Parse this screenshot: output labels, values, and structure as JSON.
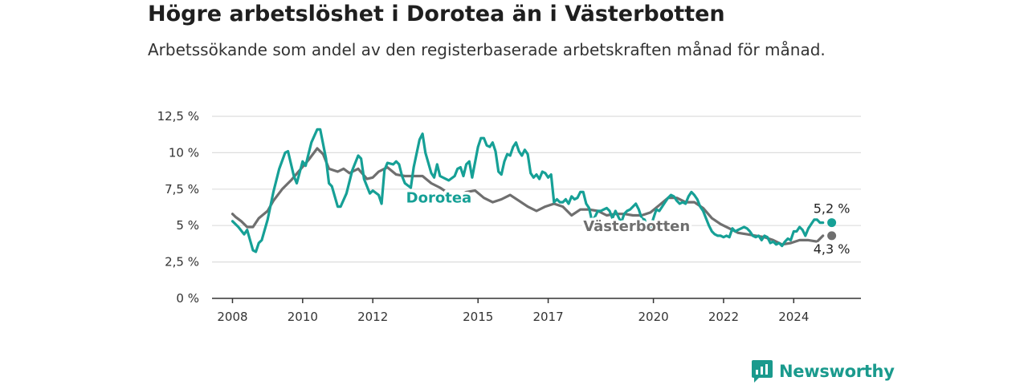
{
  "title": "Högre arbetslöshet i Dorotea än i Västerbotten",
  "subtitle": "Arbetssökande som andel av den registerbaserade arbetskraften månad för månad.",
  "brand": {
    "name": "Newsworthy",
    "icon": "newsworthy-logo-icon"
  },
  "colors": {
    "dorotea": "#16a096",
    "vasterbotten": "#6f6f6f",
    "grid": "#dddddd",
    "axis": "#333333"
  },
  "chart_data": {
    "type": "line",
    "ylim": [
      0,
      12.5
    ],
    "y_ticks": [
      {
        "value": 0,
        "label": "0 %"
      },
      {
        "value": 2.5,
        "label": "2,5 %"
      },
      {
        "value": 5,
        "label": "5 %"
      },
      {
        "value": 7.5,
        "label": "7,5 %"
      },
      {
        "value": 10,
        "label": "10 %"
      },
      {
        "value": 12.5,
        "label": "12,5 %"
      }
    ],
    "x_ticks": [
      "2008",
      "2010",
      "2012",
      "2015",
      "2017",
      "2020",
      "2022",
      "2024"
    ],
    "xlim": [
      "2007-06",
      "2025-12"
    ],
    "grid": true,
    "series": [
      {
        "name": "Dorotea",
        "end_label": "5,2 %",
        "points": [
          [
            "2008-01",
            5.3
          ],
          [
            "2008-03",
            4.9
          ],
          [
            "2008-05",
            4.4
          ],
          [
            "2008-06",
            4.7
          ],
          [
            "2008-08",
            3.3
          ],
          [
            "2008-09",
            3.2
          ],
          [
            "2008-10",
            3.8
          ],
          [
            "2008-11",
            4.0
          ],
          [
            "2009-01",
            5.4
          ],
          [
            "2009-03",
            7.3
          ],
          [
            "2009-05",
            8.9
          ],
          [
            "2009-07",
            10.0
          ],
          [
            "2009-08",
            10.1
          ],
          [
            "2009-10",
            8.4
          ],
          [
            "2009-11",
            7.9
          ],
          [
            "2010-01",
            9.4
          ],
          [
            "2010-02",
            9.1
          ],
          [
            "2010-04",
            10.7
          ],
          [
            "2010-06",
            11.6
          ],
          [
            "2010-07",
            11.6
          ],
          [
            "2010-09",
            9.6
          ],
          [
            "2010-10",
            7.9
          ],
          [
            "2010-11",
            7.7
          ],
          [
            "2011-01",
            6.3
          ],
          [
            "2011-02",
            6.3
          ],
          [
            "2011-04",
            7.2
          ],
          [
            "2011-06",
            8.8
          ],
          [
            "2011-08",
            9.8
          ],
          [
            "2011-09",
            9.6
          ],
          [
            "2011-10",
            8.2
          ],
          [
            "2011-12",
            7.2
          ],
          [
            "2012-01",
            7.4
          ],
          [
            "2012-03",
            7.1
          ],
          [
            "2012-04",
            6.5
          ],
          [
            "2012-05",
            8.8
          ],
          [
            "2012-06",
            9.3
          ],
          [
            "2012-08",
            9.2
          ],
          [
            "2012-09",
            9.4
          ],
          [
            "2012-10",
            9.2
          ],
          [
            "2012-11",
            8.4
          ],
          [
            "2012-12",
            7.9
          ],
          [
            "2013-02",
            7.6
          ],
          [
            "2013-03",
            9.0
          ],
          [
            "2013-05",
            10.9
          ],
          [
            "2013-06",
            11.3
          ],
          [
            "2013-07",
            10.0
          ],
          [
            "2013-09",
            8.6
          ],
          [
            "2013-10",
            8.3
          ],
          [
            "2013-11",
            9.2
          ],
          [
            "2013-12",
            8.4
          ],
          [
            "2014-03",
            8.1
          ],
          [
            "2014-05",
            8.4
          ],
          [
            "2014-06",
            8.9
          ],
          [
            "2014-07",
            9.0
          ],
          [
            "2014-08",
            8.4
          ],
          [
            "2014-09",
            9.2
          ],
          [
            "2014-10",
            9.4
          ],
          [
            "2014-11",
            8.3
          ],
          [
            "2015-01",
            10.4
          ],
          [
            "2015-02",
            11.0
          ],
          [
            "2015-03",
            11.0
          ],
          [
            "2015-04",
            10.5
          ],
          [
            "2015-05",
            10.4
          ],
          [
            "2015-06",
            10.7
          ],
          [
            "2015-07",
            10.1
          ],
          [
            "2015-08",
            8.7
          ],
          [
            "2015-09",
            8.5
          ],
          [
            "2015-10",
            9.4
          ],
          [
            "2015-11",
            9.9
          ],
          [
            "2015-12",
            9.8
          ],
          [
            "2016-01",
            10.4
          ],
          [
            "2016-02",
            10.7
          ],
          [
            "2016-03",
            10.1
          ],
          [
            "2016-04",
            9.8
          ],
          [
            "2016-05",
            10.2
          ],
          [
            "2016-06",
            9.9
          ],
          [
            "2016-07",
            8.6
          ],
          [
            "2016-08",
            8.3
          ],
          [
            "2016-09",
            8.5
          ],
          [
            "2016-10",
            8.2
          ],
          [
            "2016-11",
            8.7
          ],
          [
            "2016-12",
            8.6
          ],
          [
            "2017-01",
            8.3
          ],
          [
            "2017-02",
            8.5
          ],
          [
            "2017-03",
            6.6
          ],
          [
            "2017-04",
            6.8
          ],
          [
            "2017-05",
            6.6
          ],
          [
            "2017-06",
            6.6
          ],
          [
            "2017-07",
            6.8
          ],
          [
            "2017-08",
            6.5
          ],
          [
            "2017-09",
            7.0
          ],
          [
            "2017-10",
            6.8
          ],
          [
            "2017-11",
            6.9
          ],
          [
            "2017-12",
            7.3
          ],
          [
            "2018-01",
            7.3
          ],
          [
            "2018-02",
            6.5
          ],
          [
            "2018-03",
            6.2
          ],
          [
            "2018-04",
            5.3
          ],
          [
            "2018-05",
            5.6
          ],
          [
            "2018-06",
            6.0
          ],
          [
            "2018-07",
            6.0
          ],
          [
            "2018-08",
            6.1
          ],
          [
            "2018-09",
            6.2
          ],
          [
            "2018-10",
            6.0
          ],
          [
            "2018-11",
            5.5
          ],
          [
            "2018-12",
            6.0
          ],
          [
            "2019-01",
            5.6
          ],
          [
            "2019-02",
            5.2
          ],
          [
            "2019-03",
            5.8
          ],
          [
            "2019-04",
            6.0
          ],
          [
            "2019-05",
            6.1
          ],
          [
            "2019-06",
            6.3
          ],
          [
            "2019-07",
            6.5
          ],
          [
            "2019-08",
            6.1
          ],
          [
            "2019-09",
            5.5
          ],
          [
            "2019-10",
            5.4
          ],
          [
            "2019-11",
            4.7
          ],
          [
            "2019-12",
            4.9
          ],
          [
            "2020-01",
            5.5
          ],
          [
            "2020-02",
            6.1
          ],
          [
            "2020-03",
            6.0
          ],
          [
            "2020-04",
            6.3
          ],
          [
            "2020-05",
            6.6
          ],
          [
            "2020-06",
            6.9
          ],
          [
            "2020-07",
            7.1
          ],
          [
            "2020-08",
            7.0
          ],
          [
            "2020-09",
            6.7
          ],
          [
            "2020-10",
            6.5
          ],
          [
            "2020-11",
            6.6
          ],
          [
            "2020-12",
            6.5
          ],
          [
            "2021-01",
            7.0
          ],
          [
            "2021-02",
            7.3
          ],
          [
            "2021-03",
            7.1
          ],
          [
            "2021-04",
            6.8
          ],
          [
            "2021-05",
            6.3
          ],
          [
            "2021-06",
            6.0
          ],
          [
            "2021-07",
            5.5
          ],
          [
            "2021-08",
            5.0
          ],
          [
            "2021-09",
            4.6
          ],
          [
            "2021-10",
            4.4
          ],
          [
            "2021-11",
            4.3
          ],
          [
            "2021-12",
            4.3
          ],
          [
            "2022-01",
            4.2
          ],
          [
            "2022-02",
            4.3
          ],
          [
            "2022-03",
            4.2
          ],
          [
            "2022-04",
            4.8
          ],
          [
            "2022-05",
            4.6
          ],
          [
            "2022-06",
            4.7
          ],
          [
            "2022-07",
            4.8
          ],
          [
            "2022-08",
            4.9
          ],
          [
            "2022-09",
            4.8
          ],
          [
            "2022-10",
            4.6
          ],
          [
            "2022-11",
            4.3
          ],
          [
            "2022-12",
            4.2
          ],
          [
            "2023-01",
            4.3
          ],
          [
            "2023-02",
            4.0
          ],
          [
            "2023-03",
            4.3
          ],
          [
            "2023-04",
            4.2
          ],
          [
            "2023-05",
            3.8
          ],
          [
            "2023-06",
            3.9
          ],
          [
            "2023-07",
            3.7
          ],
          [
            "2023-08",
            3.8
          ],
          [
            "2023-09",
            3.6
          ],
          [
            "2023-10",
            3.9
          ],
          [
            "2023-11",
            4.1
          ],
          [
            "2023-12",
            4.0
          ],
          [
            "2024-01",
            4.6
          ],
          [
            "2024-02",
            4.6
          ],
          [
            "2024-03",
            4.9
          ],
          [
            "2024-04",
            4.7
          ],
          [
            "2024-05",
            4.3
          ],
          [
            "2024-06",
            4.8
          ],
          [
            "2024-07",
            5.1
          ],
          [
            "2024-08",
            5.4
          ],
          [
            "2024-09",
            5.4
          ],
          [
            "2024-10",
            5.2
          ],
          [
            "2024-11",
            5.2
          ]
        ]
      },
      {
        "name": "Västerbotten",
        "end_label": "4,3 %",
        "points": [
          [
            "2008-01",
            5.8
          ],
          [
            "2008-02",
            5.6
          ],
          [
            "2008-04",
            5.3
          ],
          [
            "2008-06",
            4.9
          ],
          [
            "2008-08",
            4.9
          ],
          [
            "2008-10",
            5.5
          ],
          [
            "2009-01",
            6.0
          ],
          [
            "2009-03",
            6.7
          ],
          [
            "2009-06",
            7.5
          ],
          [
            "2009-09",
            8.1
          ],
          [
            "2009-12",
            8.8
          ],
          [
            "2010-03",
            9.5
          ],
          [
            "2010-06",
            10.3
          ],
          [
            "2010-08",
            9.9
          ],
          [
            "2010-10",
            8.9
          ],
          [
            "2011-01",
            8.7
          ],
          [
            "2011-03",
            8.9
          ],
          [
            "2011-05",
            8.6
          ],
          [
            "2011-08",
            8.9
          ],
          [
            "2011-11",
            8.2
          ],
          [
            "2012-01",
            8.3
          ],
          [
            "2012-03",
            8.7
          ],
          [
            "2012-06",
            9.0
          ],
          [
            "2012-09",
            8.5
          ],
          [
            "2012-12",
            8.4
          ],
          [
            "2013-03",
            8.4
          ],
          [
            "2013-06",
            8.4
          ],
          [
            "2013-09",
            7.9
          ],
          [
            "2013-12",
            7.6
          ],
          [
            "2014-03",
            7.2
          ],
          [
            "2014-06",
            7.0
          ],
          [
            "2014-09",
            7.3
          ],
          [
            "2014-12",
            7.4
          ],
          [
            "2015-03",
            6.9
          ],
          [
            "2015-06",
            6.6
          ],
          [
            "2015-09",
            6.8
          ],
          [
            "2015-12",
            7.1
          ],
          [
            "2016-03",
            6.7
          ],
          [
            "2016-06",
            6.3
          ],
          [
            "2016-09",
            6.0
          ],
          [
            "2016-12",
            6.3
          ],
          [
            "2017-03",
            6.5
          ],
          [
            "2017-06",
            6.3
          ],
          [
            "2017-09",
            5.7
          ],
          [
            "2017-12",
            6.1
          ],
          [
            "2018-03",
            6.1
          ],
          [
            "2018-06",
            6.0
          ],
          [
            "2018-09",
            5.7
          ],
          [
            "2018-12",
            5.8
          ],
          [
            "2019-03",
            5.8
          ],
          [
            "2019-06",
            5.7
          ],
          [
            "2019-09",
            5.7
          ],
          [
            "2019-12",
            5.9
          ],
          [
            "2020-03",
            6.4
          ],
          [
            "2020-06",
            6.9
          ],
          [
            "2020-09",
            6.9
          ],
          [
            "2020-12",
            6.6
          ],
          [
            "2021-03",
            6.6
          ],
          [
            "2021-06",
            6.2
          ],
          [
            "2021-09",
            5.5
          ],
          [
            "2021-12",
            5.1
          ],
          [
            "2022-03",
            4.8
          ],
          [
            "2022-06",
            4.5
          ],
          [
            "2022-09",
            4.4
          ],
          [
            "2022-12",
            4.3
          ],
          [
            "2023-03",
            4.2
          ],
          [
            "2023-06",
            4.0
          ],
          [
            "2023-09",
            3.7
          ],
          [
            "2023-12",
            3.8
          ],
          [
            "2024-03",
            4.0
          ],
          [
            "2024-06",
            4.0
          ],
          [
            "2024-09",
            3.9
          ],
          [
            "2024-11",
            4.3
          ]
        ]
      }
    ],
    "annotations": [
      "Dorotea",
      "Västerbotten"
    ]
  }
}
